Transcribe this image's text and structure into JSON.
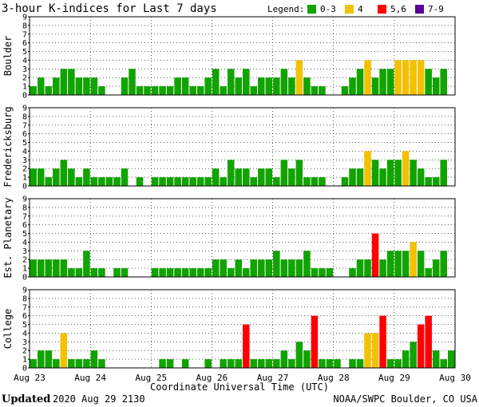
{
  "title": "3-hour K-indices for Last 7 days",
  "legend": {
    "label": "Legend:",
    "items": [
      {
        "label": "0-3",
        "color": "#11a300"
      },
      {
        "label": "4",
        "color": "#f2c100"
      },
      {
        "label": "5,6",
        "color": "#ff0000"
      },
      {
        "label": "7-9",
        "color": "#5a0096"
      }
    ]
  },
  "footer": {
    "updated_label": "Updated",
    "updated_value": "2020 Aug 29 2130",
    "source": "NOAA/SWPC Boulder, CO USA"
  },
  "chart_data": {
    "type": "bar",
    "xlabel": "Coordinate Universal Time (UTC)",
    "x_ticks": [
      "Aug 23",
      "Aug 24",
      "Aug 25",
      "Aug 26",
      "Aug 27",
      "Aug 28",
      "Aug 29",
      "Aug 30"
    ],
    "ylim": [
      0,
      9
    ],
    "y_ticks": [
      0,
      1,
      2,
      3,
      4,
      5,
      6,
      7,
      8,
      9
    ],
    "interval": "3-hour",
    "panels": [
      {
        "name": "Boulder",
        "values": [
          1,
          2,
          1,
          2,
          3,
          3,
          2,
          2,
          2,
          1,
          0,
          0,
          2,
          3,
          1,
          1,
          1,
          1,
          1,
          2,
          2,
          1,
          1,
          2,
          3,
          1,
          3,
          2,
          3,
          1,
          2,
          2,
          2,
          3,
          2,
          4,
          2,
          1,
          1,
          0,
          0,
          1,
          2,
          3,
          4,
          2,
          3,
          3,
          4,
          4,
          4,
          4,
          3,
          2,
          3,
          0
        ]
      },
      {
        "name": "Fredericksburg",
        "values": [
          2,
          2,
          1,
          2,
          3,
          2,
          1,
          2,
          1,
          1,
          1,
          1,
          2,
          0,
          1,
          0,
          1,
          1,
          1,
          1,
          1,
          1,
          1,
          1,
          2,
          1,
          3,
          2,
          2,
          1,
          2,
          2,
          1,
          3,
          2,
          3,
          1,
          1,
          1,
          0,
          0,
          1,
          2,
          2,
          4,
          3,
          2,
          3,
          3,
          4,
          3,
          2,
          1,
          1,
          3,
          0
        ]
      },
      {
        "name": "Est. Planetary",
        "values": [
          2,
          2,
          2,
          2,
          2,
          1,
          1,
          3,
          1,
          1,
          0,
          1,
          1,
          0,
          0,
          0,
          1,
          1,
          1,
          1,
          1,
          1,
          1,
          1,
          2,
          2,
          1,
          2,
          1,
          2,
          2,
          2,
          3,
          2,
          2,
          2,
          3,
          1,
          1,
          1,
          0,
          0,
          1,
          2,
          2,
          5,
          2,
          3,
          3,
          3,
          4,
          3,
          1,
          2,
          3,
          0
        ]
      },
      {
        "name": "College",
        "values": [
          1,
          2,
          2,
          1,
          4,
          1,
          1,
          1,
          2,
          1,
          0,
          0,
          0,
          0,
          0,
          0,
          0,
          1,
          1,
          0,
          1,
          0,
          0,
          1,
          0,
          1,
          1,
          1,
          5,
          1,
          1,
          1,
          1,
          2,
          1,
          3,
          2,
          6,
          1,
          1,
          1,
          0,
          1,
          1,
          4,
          4,
          6,
          1,
          1,
          2,
          3,
          5,
          6,
          2,
          1,
          2
        ]
      }
    ]
  }
}
